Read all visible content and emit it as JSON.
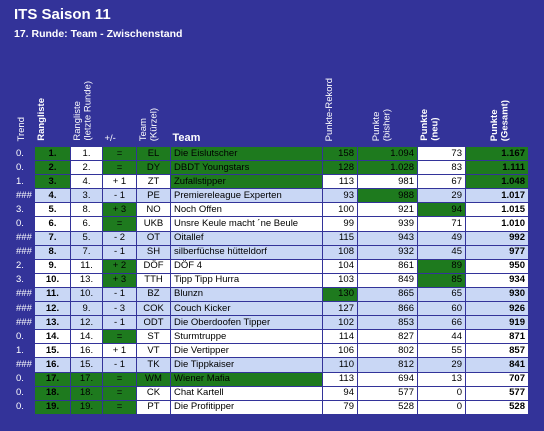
{
  "title": "ITS Saison 11",
  "subtitle": "17. Runde: Team - Zwischenstand",
  "table": {
    "columns": [
      "Trend",
      "Rangliste",
      "Rangliste\n(letzte Runde)",
      "+/-",
      "Team\n(Kürzel)",
      "Team",
      "Punkte-Rekord",
      "Punkte\n(bisher)",
      "Punkte\n(neu)",
      "Punkte\n(Gesamt)"
    ],
    "rows": [
      [
        "0.",
        "1.",
        "1.",
        "=",
        "EL",
        "Die Eislutscher",
        "158",
        "1.094",
        "73",
        "1.167"
      ],
      [
        "0.",
        "2.",
        "2.",
        "=",
        "DY",
        "DBDT Youngstars",
        "128",
        "1.028",
        "83",
        "1.111"
      ],
      [
        "1.",
        "3.",
        "4.",
        "+ 1",
        "ZT",
        "Zufallstipper",
        "113",
        "981",
        "67",
        "1.048"
      ],
      [
        "###",
        "4.",
        "3.",
        "- 1",
        "PE",
        "Premiereleague Experten",
        "93",
        "988",
        "29",
        "1.017"
      ],
      [
        "3.",
        "5.",
        "8.",
        "+ 3",
        "NO",
        "Noch Offen",
        "100",
        "921",
        "94",
        "1.015"
      ],
      [
        "0.",
        "6.",
        "6.",
        "=",
        "UKB",
        "Unsre Keule macht ´ne Beule",
        "99",
        "939",
        "71",
        "1.010"
      ],
      [
        "###",
        "7.",
        "5.",
        "- 2",
        "OT",
        "Oitallef",
        "115",
        "943",
        "49",
        "992"
      ],
      [
        "###",
        "8.",
        "7.",
        "- 1",
        "SH",
        "silberfüchse hütteldorf",
        "108",
        "932",
        "45",
        "977"
      ],
      [
        "2.",
        "9.",
        "11.",
        "+ 2",
        "DÖF",
        "DÖF 4",
        "104",
        "861",
        "89",
        "950"
      ],
      [
        "3.",
        "10.",
        "13.",
        "+ 3",
        "TTH",
        "Tipp Tipp Hurra",
        "103",
        "849",
        "85",
        "934"
      ],
      [
        "###",
        "11.",
        "10.",
        "- 1",
        "BZ",
        "Blunzn",
        "130",
        "865",
        "65",
        "930"
      ],
      [
        "###",
        "12.",
        "9.",
        "- 3",
        "COK",
        "Couch Kicker",
        "127",
        "866",
        "60",
        "926"
      ],
      [
        "###",
        "13.",
        "12.",
        "- 1",
        "ODT",
        "Die Oberdoofen Tipper",
        "102",
        "853",
        "66",
        "919"
      ],
      [
        "0.",
        "14.",
        "14.",
        "=",
        "ST",
        "Sturmtruppe",
        "114",
        "827",
        "44",
        "871"
      ],
      [
        "1.",
        "15.",
        "16.",
        "+ 1",
        "VT",
        "Die Vertipper",
        "106",
        "802",
        "55",
        "857"
      ],
      [
        "###",
        "16.",
        "15.",
        "- 1",
        "TK",
        "Die Tippkaiser",
        "110",
        "812",
        "29",
        "841"
      ],
      [
        "0.",
        "17.",
        "17.",
        "=",
        "WM",
        "Wiener Mafia",
        "113",
        "694",
        "13",
        "707"
      ],
      [
        "0.",
        "18.",
        "18.",
        "=",
        "CK",
        "Chat Kartell",
        "94",
        "577",
        "0",
        "577"
      ],
      [
        "0.",
        "19.",
        "19.",
        "=",
        "PT",
        "Die Profitipper",
        "79",
        "528",
        "0",
        "528"
      ]
    ]
  }
}
